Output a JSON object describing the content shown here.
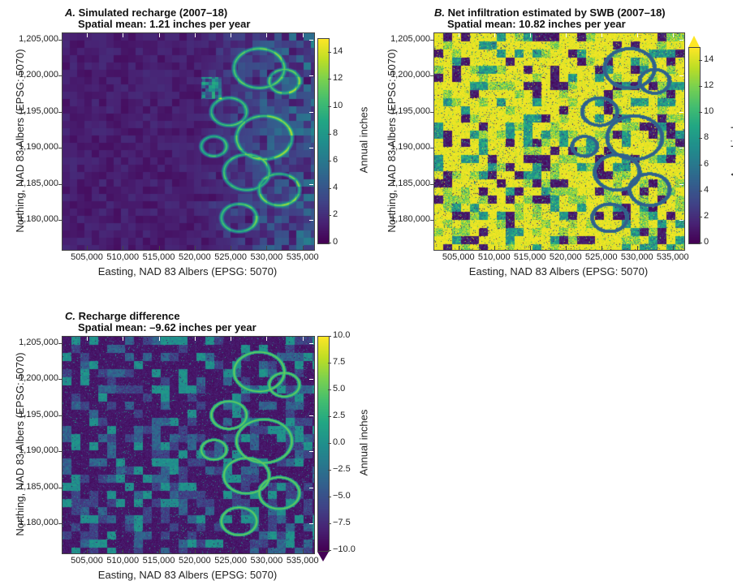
{
  "chart_data": [
    {
      "type": "heatmap",
      "panel": "A.",
      "title": "Simulated recharge (2007–18)",
      "subtitle": "Spatial mean: 1.21 inches per year",
      "xlabel": "Easting, NAD 83 Albers (EPSG: 5070)",
      "ylabel": "Northing,  NAD 83 Albers (EPSG: 5070)",
      "xticks": [
        "505,000",
        "510,000",
        "515,000",
        "520,000",
        "525,000",
        "530,000",
        "535,000"
      ],
      "yticks": [
        "1,180,000",
        "1,185,000",
        "1,190,000",
        "1,195,000",
        "1,200,000",
        "1,205,000"
      ],
      "xlim": [
        501500,
        536500
      ],
      "ylim": [
        1176000,
        1206000
      ],
      "colorbar": {
        "label": "Annual inches",
        "ticks": [
          "0",
          "2",
          "4",
          "6",
          "8",
          "10",
          "12",
          "14"
        ],
        "range": [
          0,
          15
        ],
        "extend": "none"
      },
      "colormap": "viridis",
      "description_values": {
        "typical": 1.2,
        "max": 15
      }
    },
    {
      "type": "heatmap",
      "panel": "B.",
      "title": "Net infiltration estimated by SWB (2007–18)",
      "subtitle": "Spatial mean: 10.82 inches per year",
      "xlabel": "Easting, NAD 83 Albers (EPSG: 5070)",
      "ylabel": "Northing,  NAD 83 Albers (EPSG: 5070)",
      "xticks": [
        "505,000",
        "510,000",
        "515,000",
        "520,000",
        "525,000",
        "530,000",
        "535,000"
      ],
      "yticks": [
        "1,180,000",
        "1,185,000",
        "1,190,000",
        "1,195,000",
        "1,200,000",
        "1,205,000"
      ],
      "xlim": [
        501500,
        536500
      ],
      "ylim": [
        1176000,
        1206000
      ],
      "colorbar": {
        "label": "Annual inches",
        "ticks": [
          "0",
          "2",
          "4",
          "6",
          "8",
          "10",
          "12",
          "14"
        ],
        "range": [
          0,
          15
        ],
        "extend": "max"
      },
      "colormap": "viridis"
    },
    {
      "type": "heatmap",
      "panel": "C.",
      "title": "Recharge difference",
      "subtitle": "Spatial mean: –9.62 inches per year",
      "xlabel": "Easting, NAD 83 Albers (EPSG: 5070)",
      "ylabel": "Northing,  NAD 83 Albers (EPSG: 5070)",
      "xticks": [
        "505,000",
        "510,000",
        "515,000",
        "520,000",
        "525,000",
        "530,000",
        "535,000"
      ],
      "yticks": [
        "1,180,000",
        "1,185,000",
        "1,190,000",
        "1,195,000",
        "1,200,000",
        "1,205,000"
      ],
      "xlim": [
        501500,
        536500
      ],
      "ylim": [
        1176000,
        1206000
      ],
      "colorbar": {
        "label": "Annual inches",
        "ticks": [
          "−10.0",
          "−7.5",
          "−5.0",
          "−2.5",
          "0.0",
          "2.5",
          "5.0",
          "7.5",
          "10.0"
        ],
        "range": [
          -10,
          10
        ],
        "extend": "min"
      },
      "colormap": "viridis"
    }
  ]
}
